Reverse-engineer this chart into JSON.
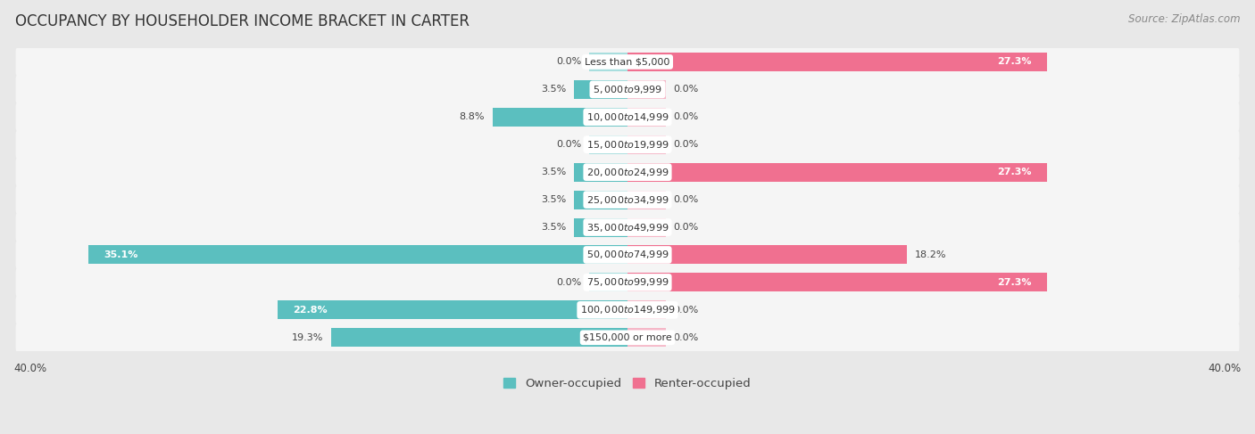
{
  "title": "OCCUPANCY BY HOUSEHOLDER INCOME BRACKET IN CARTER",
  "source": "Source: ZipAtlas.com",
  "categories": [
    "Less than $5,000",
    "$5,000 to $9,999",
    "$10,000 to $14,999",
    "$15,000 to $19,999",
    "$20,000 to $24,999",
    "$25,000 to $34,999",
    "$35,000 to $49,999",
    "$50,000 to $74,999",
    "$75,000 to $99,999",
    "$100,000 to $149,999",
    "$150,000 or more"
  ],
  "owner_values": [
    0.0,
    3.5,
    8.8,
    0.0,
    3.5,
    3.5,
    3.5,
    35.1,
    0.0,
    22.8,
    19.3
  ],
  "renter_values": [
    27.3,
    0.0,
    0.0,
    0.0,
    27.3,
    0.0,
    0.0,
    18.2,
    27.3,
    0.0,
    0.0
  ],
  "owner_color": "#5BBFBF",
  "renter_color": "#F07090",
  "owner_color_light": "#A8DEDE",
  "renter_color_light": "#F5B8C8",
  "background_color": "#e8e8e8",
  "bar_background": "#f5f5f5",
  "xlim": 40.0,
  "title_fontsize": 12,
  "source_fontsize": 8.5,
  "legend_fontsize": 9.5,
  "label_fontsize": 8,
  "category_fontsize": 8,
  "min_stub": 2.5
}
